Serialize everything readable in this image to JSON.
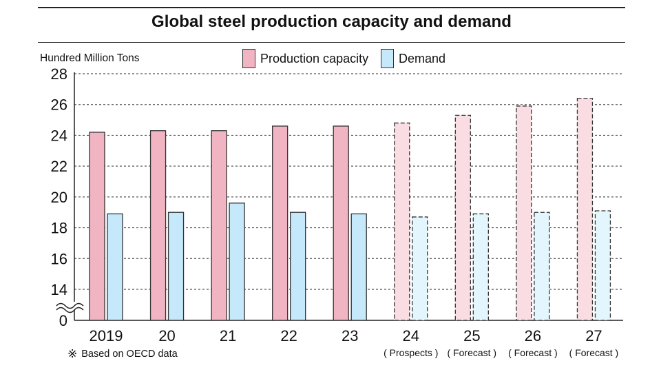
{
  "title": "Global steel production capacity and demand",
  "unit_label": "Hundred Million Tons",
  "note_mark": "※",
  "note": "Based on OECD data",
  "colors": {
    "capacity_fill": "#f1b4c2",
    "capacity_fill_light": "#f9dde3",
    "demand_fill": "#c5e8fa",
    "demand_fill_light": "#e3f5fd",
    "outline": "#333333",
    "grid": "#555555"
  },
  "chart_data": {
    "type": "bar",
    "title": "Global steel production capacity and demand",
    "ylabel": "Hundred Million Tons",
    "ylim": [
      0,
      28
    ],
    "axis_break": "between 0 and 14",
    "yticks": [
      "0",
      "14",
      "16",
      "18",
      "20",
      "22",
      "24",
      "26",
      "28"
    ],
    "grid": true,
    "legend_position": "top",
    "categories": [
      "2019",
      "20",
      "21",
      "22",
      "23",
      "24",
      "25",
      "26",
      "27"
    ],
    "category_notes": [
      "",
      "",
      "",
      "",
      "",
      "( Prospects )",
      "( Forecast )",
      "( Forecast )",
      "( Forecast )"
    ],
    "projected_from_index": 5,
    "series": [
      {
        "name": "Production capacity",
        "values": [
          24.2,
          24.3,
          24.3,
          24.6,
          24.6,
          24.8,
          25.3,
          25.9,
          26.4
        ]
      },
      {
        "name": "Demand",
        "values": [
          18.9,
          19.0,
          19.6,
          19.0,
          18.9,
          18.7,
          18.9,
          19.0,
          19.1
        ]
      }
    ]
  }
}
